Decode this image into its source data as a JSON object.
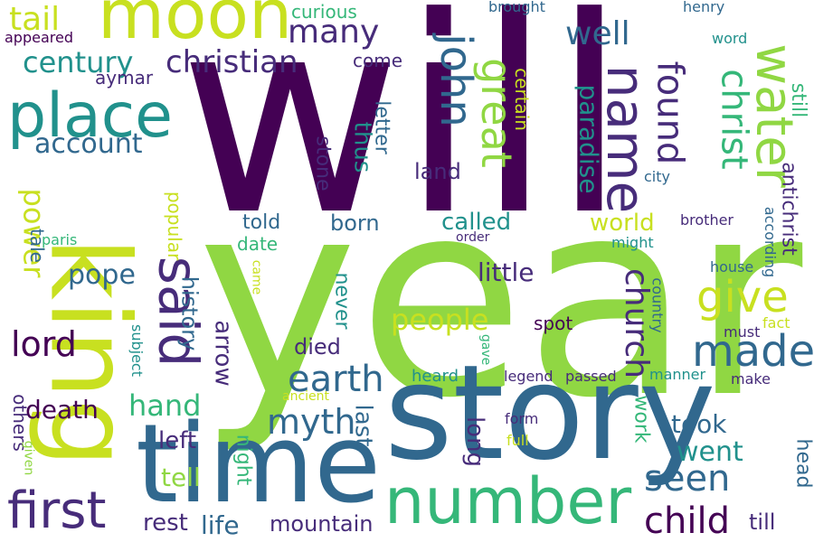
{
  "palette": {
    "dark_purple": "#440154",
    "indigo": "#472c7a",
    "blue": "#31688e",
    "teal": "#21918c",
    "green": "#35b779",
    "lime": "#90d743",
    "yellow": "#c8e020"
  },
  "words": [
    "will",
    "year",
    "king",
    "story",
    "time",
    "moon",
    "place",
    "number",
    "said",
    "name",
    "water",
    "john",
    "first",
    "great",
    "give",
    "made",
    "christ",
    "found",
    "church",
    "child",
    "earth",
    "seen",
    "myth",
    "lord",
    "power",
    "people",
    "christian",
    "century",
    "many",
    "tail",
    "well",
    "pope",
    "hand",
    "went",
    "death",
    "tell",
    "account",
    "paradise",
    "died",
    "history",
    "arrow",
    "little",
    "last",
    "life",
    "mountain",
    "rest",
    "land",
    "born",
    "called",
    "world",
    "took",
    "left",
    "long",
    "popular",
    "stone",
    "thus",
    "letter",
    "certain",
    "antichrist",
    "still",
    "curious",
    "come",
    "aymar",
    "told",
    "date",
    "never",
    "head",
    "others",
    "night",
    "work",
    "spot",
    "brother",
    "might",
    "heard",
    "legend",
    "passed",
    "manner",
    "make",
    "tale",
    "paris",
    "house",
    "according",
    "country",
    "came",
    "subject",
    "gave",
    "fact",
    "must",
    "order",
    "ancient",
    "form",
    "full",
    "given",
    "appeared",
    "brought",
    "henry",
    "word",
    "city",
    "till"
  ]
}
